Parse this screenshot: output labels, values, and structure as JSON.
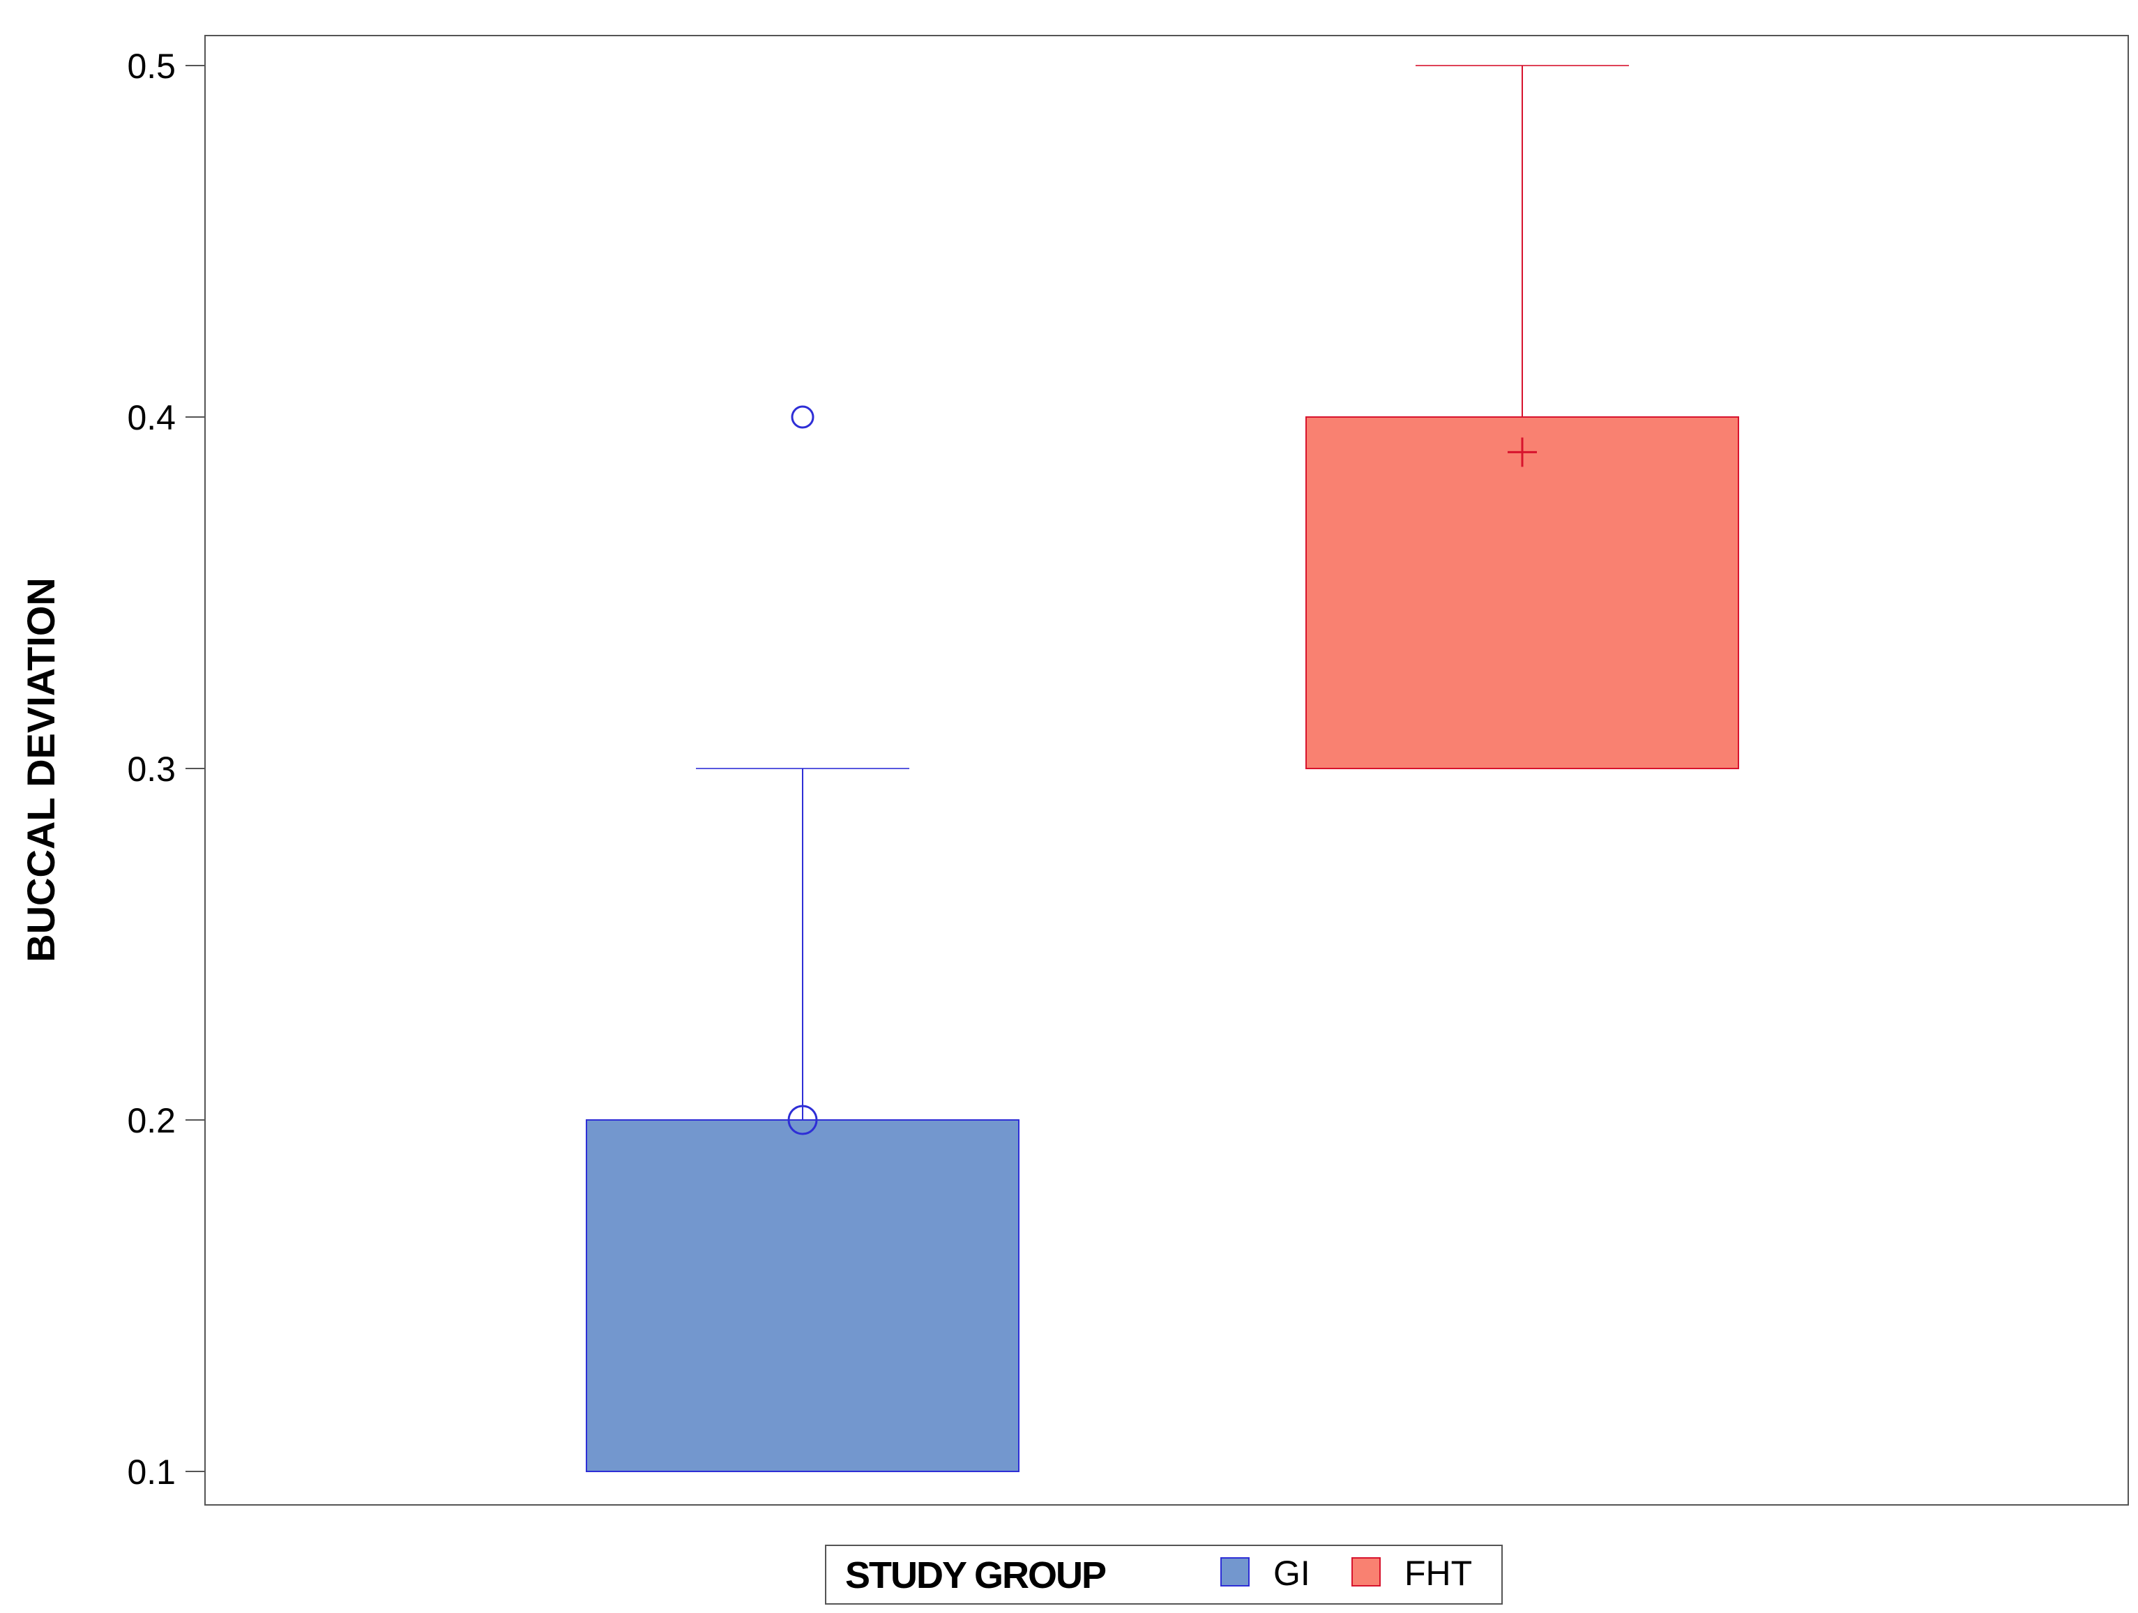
{
  "chart_data": {
    "type": "box",
    "ylabel": "BUCCAL DEVIATION",
    "xlabel": "",
    "ylim": [
      0.1,
      0.5
    ],
    "yticks": [
      "0.1",
      "0.2",
      "0.3",
      "0.4",
      "0.5"
    ],
    "grid": false,
    "legend": {
      "title": "STUDY GROUP",
      "position": "bottom",
      "items": [
        "GI",
        "FHT"
      ]
    },
    "series": [
      {
        "name": "GI",
        "color": "#7397ce",
        "line_color": "#2e2ed6",
        "q1": 0.1,
        "median": 0.2,
        "q3": 0.2,
        "whisker_low": 0.1,
        "whisker_high": 0.3,
        "mean": 0.2,
        "mean_marker": "circle",
        "outliers": [
          0.4
        ]
      },
      {
        "name": "FHT",
        "color": "#f98171",
        "line_color": "#d7132d",
        "q1": 0.3,
        "median": 0.4,
        "q3": 0.4,
        "whisker_low": 0.3,
        "whisker_high": 0.5,
        "mean": 0.39,
        "mean_marker": "plus",
        "outliers": []
      }
    ]
  }
}
